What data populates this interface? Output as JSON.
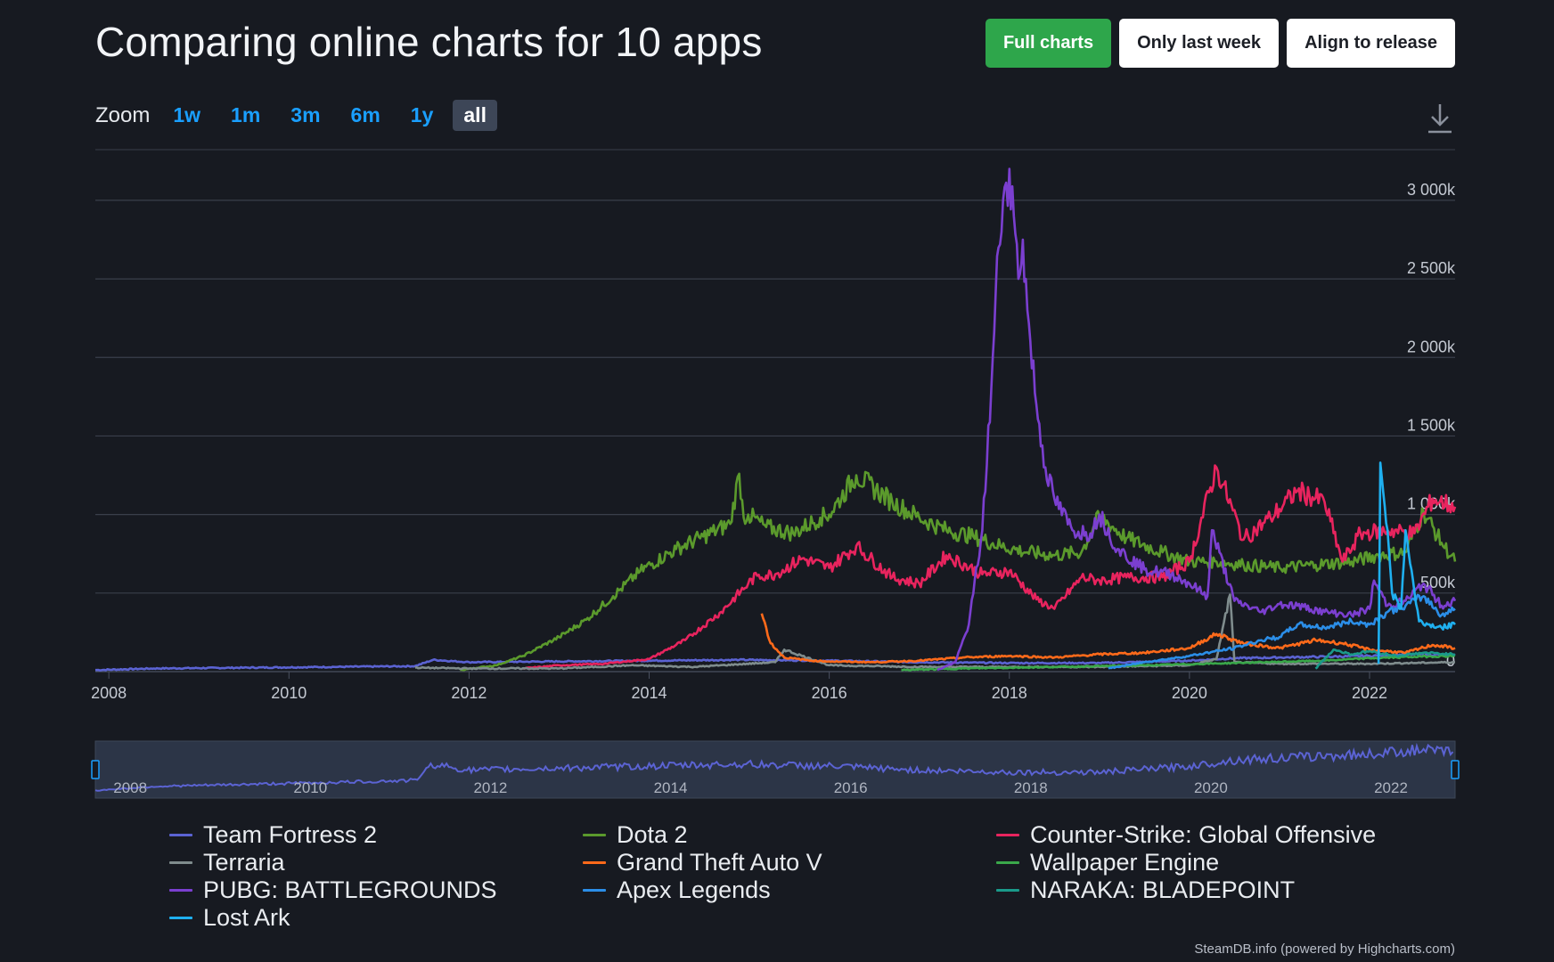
{
  "header": {
    "title": "Comparing online charts for 10 apps",
    "buttons": [
      {
        "label": "Full charts",
        "active": true
      },
      {
        "label": "Only last week",
        "active": false
      },
      {
        "label": "Align to release",
        "active": false
      }
    ]
  },
  "zoom": {
    "label": "Zoom",
    "options": [
      "1w",
      "1m",
      "3m",
      "6m",
      "1y",
      "all"
    ],
    "selected": "all"
  },
  "toolbar": {
    "download_icon": "download-icon"
  },
  "credit": "SteamDB.info (powered by Highcharts.com)",
  "colors": {
    "background": "#171a21",
    "grid": "#3a3f4b",
    "accent_green": "#2ea64b",
    "zoom_blue": "#1a9fff"
  },
  "chart_data": {
    "type": "line",
    "xlim": [
      2007.85,
      2022.95
    ],
    "ylim": [
      0,
      3300000
    ],
    "y_ticks": [
      0,
      500000,
      1000000,
      1500000,
      2000000,
      2500000,
      3000000
    ],
    "y_tick_labels": [
      "0",
      "500k",
      "1 000k",
      "1 500k",
      "2 000k",
      "2 500k",
      "3 000k"
    ],
    "x_ticks": [
      2008,
      2010,
      2012,
      2014,
      2016,
      2018,
      2020,
      2022
    ],
    "x_tick_labels": [
      "2008",
      "2010",
      "2012",
      "2014",
      "2016",
      "2018",
      "2020",
      "2022"
    ],
    "grid": true,
    "legend_position": "bottom",
    "series": [
      {
        "name": "Team Fortress 2",
        "color": "#5b63d3",
        "x": [
          2007.85,
          2008.5,
          2009.5,
          2010.5,
          2011.4,
          2011.6,
          2012.0,
          2013.0,
          2014.0,
          2015.0,
          2016.0,
          2017.0,
          2018.0,
          2019.0,
          2020.0,
          2020.5,
          2021.0,
          2021.5,
          2022.0,
          2022.5,
          2022.95
        ],
        "y": [
          10000,
          20000,
          25000,
          30000,
          35000,
          75000,
          60000,
          65000,
          70000,
          75000,
          70000,
          60000,
          55000,
          55000,
          70000,
          85000,
          90000,
          95000,
          100000,
          110000,
          105000
        ]
      },
      {
        "name": "Dota 2",
        "color": "#5b9a2c",
        "x": [
          2011.9,
          2012.3,
          2012.6,
          2013.0,
          2013.3,
          2013.6,
          2013.9,
          2014.3,
          2014.6,
          2014.9,
          2015.0,
          2015.05,
          2015.1,
          2015.3,
          2015.6,
          2015.9,
          2016.0,
          2016.3,
          2016.7,
          2017.0,
          2017.3,
          2017.6,
          2017.9,
          2018.2,
          2018.5,
          2018.8,
          2019.0,
          2019.3,
          2019.7,
          2020.0,
          2020.3,
          2020.6,
          2021.0,
          2021.4,
          2021.8,
          2022.1,
          2022.4,
          2022.6,
          2022.8,
          2022.95
        ],
        "y": [
          10000,
          40000,
          100000,
          220000,
          330000,
          480000,
          640000,
          780000,
          860000,
          940000,
          1260000,
          980000,
          1000000,
          920000,
          880000,
          980000,
          1000000,
          1250000,
          1080000,
          980000,
          900000,
          860000,
          800000,
          760000,
          740000,
          760000,
          990000,
          850000,
          760000,
          700000,
          700000,
          680000,
          660000,
          680000,
          700000,
          740000,
          760000,
          1020000,
          820000,
          700000
        ]
      },
      {
        "name": "Counter-Strike: Global Offensive",
        "color": "#e8245e",
        "x": [
          2012.6,
          2013.0,
          2013.5,
          2014.0,
          2014.4,
          2014.8,
          2015.1,
          2015.2,
          2015.4,
          2015.7,
          2016.0,
          2016.3,
          2016.7,
          2017.0,
          2017.3,
          2017.7,
          2018.0,
          2018.3,
          2018.5,
          2018.8,
          2019.0,
          2019.3,
          2019.7,
          2020.0,
          2020.3,
          2020.6,
          2020.9,
          2021.2,
          2021.5,
          2021.7,
          2021.9,
          2022.2,
          2022.5,
          2022.7,
          2022.95
        ],
        "y": [
          20000,
          40000,
          50000,
          80000,
          200000,
          380000,
          560000,
          610000,
          620000,
          720000,
          660000,
          800000,
          600000,
          560000,
          740000,
          620000,
          640000,
          460000,
          400000,
          600000,
          580000,
          600000,
          600000,
          700000,
          1300000,
          840000,
          980000,
          1150000,
          1080000,
          700000,
          880000,
          900000,
          880000,
          1100000,
          1050000
        ]
      },
      {
        "name": "Terraria",
        "color": "#7f8c8d",
        "x": [
          2011.4,
          2012.0,
          2013.0,
          2013.8,
          2014.5,
          2015.4,
          2015.5,
          2016.0,
          2017.0,
          2018.0,
          2019.0,
          2020.0,
          2020.3,
          2020.45,
          2020.5,
          2021.0,
          2022.0,
          2022.95
        ],
        "y": [
          25000,
          20000,
          20000,
          40000,
          30000,
          60000,
          140000,
          40000,
          30000,
          30000,
          30000,
          40000,
          80000,
          490000,
          60000,
          50000,
          50000,
          60000
        ]
      },
      {
        "name": "Grand Theft Auto V",
        "color": "#ff6a1a",
        "x": [
          2015.25,
          2015.35,
          2015.5,
          2015.8,
          2016.0,
          2016.5,
          2017.0,
          2017.5,
          2018.0,
          2018.5,
          2019.0,
          2019.5,
          2020.0,
          2020.3,
          2020.6,
          2021.0,
          2021.4,
          2021.7,
          2022.0,
          2022.4,
          2022.7,
          2022.95
        ],
        "y": [
          370000,
          180000,
          90000,
          70000,
          65000,
          60000,
          70000,
          90000,
          100000,
          90000,
          110000,
          120000,
          150000,
          240000,
          180000,
          150000,
          200000,
          180000,
          140000,
          120000,
          170000,
          150000
        ]
      },
      {
        "name": "Wallpaper Engine",
        "color": "#3aa84a",
        "x": [
          2016.8,
          2017.5,
          2018.5,
          2019.5,
          2020.5,
          2021.5,
          2022.0,
          2022.5,
          2022.95
        ],
        "y": [
          10000,
          20000,
          30000,
          40000,
          55000,
          70000,
          85000,
          95000,
          100000
        ]
      },
      {
        "name": "PUBG: BATTLEGROUNDS",
        "color": "#7b3fd0",
        "x": [
          2017.2,
          2017.4,
          2017.55,
          2017.7,
          2017.8,
          2017.88,
          2017.93,
          2018.0,
          2018.05,
          2018.1,
          2018.15,
          2018.2,
          2018.3,
          2018.4,
          2018.5,
          2018.7,
          2018.9,
          2019.0,
          2019.2,
          2019.5,
          2019.8,
          2020.0,
          2020.2,
          2020.25,
          2020.5,
          2020.8,
          2021.0,
          2021.2,
          2021.5,
          2021.8,
          2022.0,
          2022.05,
          2022.2,
          2022.4,
          2022.6,
          2022.8,
          2022.95
        ],
        "y": [
          10000,
          60000,
          300000,
          900000,
          1800000,
          2700000,
          3000000,
          3200000,
          2900000,
          2500000,
          2750000,
          2300000,
          1700000,
          1300000,
          1100000,
          900000,
          880000,
          1000000,
          780000,
          650000,
          620000,
          560000,
          480000,
          900000,
          450000,
          380000,
          430000,
          420000,
          380000,
          360000,
          400000,
          580000,
          420000,
          450000,
          560000,
          420000,
          450000
        ]
      },
      {
        "name": "Apex Legends",
        "color": "#2b8ee8",
        "x": [
          2019.1,
          2019.5,
          2020.0,
          2020.5,
          2020.8,
          2021.0,
          2021.2,
          2021.5,
          2021.8,
          2022.0,
          2022.2,
          2022.4,
          2022.6,
          2022.8,
          2022.95
        ],
        "y": [
          20000,
          60000,
          100000,
          150000,
          200000,
          220000,
          300000,
          280000,
          320000,
          300000,
          380000,
          420000,
          480000,
          360000,
          400000
        ]
      },
      {
        "name": "NARAKA: BLADEPOINT",
        "color": "#1a9a8a",
        "x": [
          2021.4,
          2021.6,
          2021.8,
          2022.0,
          2022.3,
          2022.6,
          2022.95
        ],
        "y": [
          20000,
          140000,
          110000,
          130000,
          100000,
          120000,
          110000
        ]
      },
      {
        "name": "Lost Ark",
        "color": "#1fb0f0",
        "x": [
          2022.1,
          2022.12,
          2022.2,
          2022.25,
          2022.35,
          2022.4,
          2022.5,
          2022.55,
          2022.65,
          2022.8,
          2022.95
        ],
        "y": [
          50000,
          1330000,
          900000,
          500000,
          400000,
          900000,
          500000,
          320000,
          300000,
          280000,
          300000
        ]
      }
    ],
    "navigator": {
      "x_tick_labels": [
        "2008",
        "2010",
        "2012",
        "2014",
        "2016",
        "2018",
        "2020",
        "2022"
      ]
    }
  }
}
